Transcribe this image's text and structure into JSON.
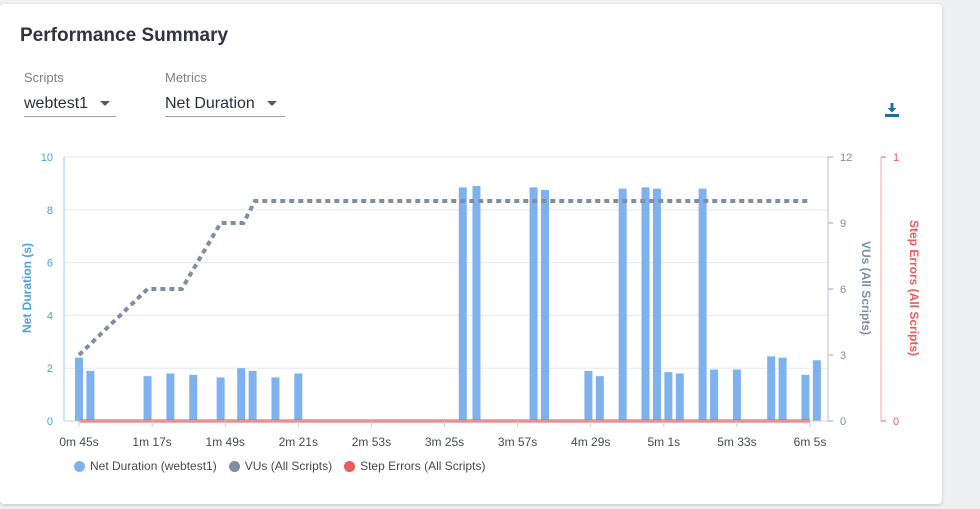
{
  "header": {
    "title": "Performance Summary"
  },
  "filters": {
    "scripts": {
      "label": "Scripts",
      "value": "webtest1"
    },
    "metrics": {
      "label": "Metrics",
      "value": "Net Duration"
    }
  },
  "icons": {
    "download": "download-icon"
  },
  "colors": {
    "duration": "#7eb2ee",
    "vus": "#7f8ea3",
    "errors": "#ee5a5a",
    "left_axis": "#4aa3df"
  },
  "chart_data": {
    "type": "bar",
    "ylabel": "Net Duration (s)",
    "y2label": "VUs (All Scripts)",
    "y3label": "Step Errors (All Scripts)",
    "ylim": [
      0,
      10
    ],
    "y2lim": [
      0,
      12
    ],
    "y3lim": [
      0,
      1
    ],
    "yticks": [
      "0",
      "2",
      "4",
      "6",
      "8",
      "10"
    ],
    "y2ticks": [
      "0",
      "3",
      "6",
      "9",
      "12"
    ],
    "y3ticks": [
      "0",
      "1"
    ],
    "xlim": [
      45,
      365
    ],
    "xticks": [
      {
        "t": 45,
        "label": "0m 45s"
      },
      {
        "t": 77,
        "label": "1m 17s"
      },
      {
        "t": 109,
        "label": "1m 49s"
      },
      {
        "t": 141,
        "label": "2m 21s"
      },
      {
        "t": 173,
        "label": "2m 53s"
      },
      {
        "t": 205,
        "label": "3m 25s"
      },
      {
        "t": 237,
        "label": "3m 57s"
      },
      {
        "t": 269,
        "label": "4m 29s"
      },
      {
        "t": 301,
        "label": "5m 1s"
      },
      {
        "t": 333,
        "label": "5m 33s"
      },
      {
        "t": 365,
        "label": "6m 5s"
      }
    ],
    "grid": true,
    "legend_position": "bottom-left",
    "series": [
      {
        "name": "Net Duration (webtest1)",
        "kind": "bar",
        "points": [
          {
            "t": 45,
            "v": 2.4
          },
          {
            "t": 50,
            "v": 1.9
          },
          {
            "t": 75,
            "v": 1.7
          },
          {
            "t": 85,
            "v": 1.8
          },
          {
            "t": 95,
            "v": 1.75
          },
          {
            "t": 107,
            "v": 1.65
          },
          {
            "t": 116,
            "v": 2.0
          },
          {
            "t": 121,
            "v": 1.9
          },
          {
            "t": 131,
            "v": 1.65
          },
          {
            "t": 141,
            "v": 1.8
          },
          {
            "t": 213,
            "v": 8.85
          },
          {
            "t": 219,
            "v": 8.9
          },
          {
            "t": 244,
            "v": 8.85
          },
          {
            "t": 249,
            "v": 8.75
          },
          {
            "t": 268,
            "v": 1.9
          },
          {
            "t": 273,
            "v": 1.7
          },
          {
            "t": 283,
            "v": 8.8
          },
          {
            "t": 293,
            "v": 8.85
          },
          {
            "t": 298,
            "v": 8.8
          },
          {
            "t": 303,
            "v": 1.85
          },
          {
            "t": 308,
            "v": 1.8
          },
          {
            "t": 318,
            "v": 8.8
          },
          {
            "t": 323,
            "v": 1.95
          },
          {
            "t": 333,
            "v": 1.95
          },
          {
            "t": 348,
            "v": 2.45
          },
          {
            "t": 353,
            "v": 2.4
          },
          {
            "t": 363,
            "v": 1.75
          },
          {
            "t": 368,
            "v": 2.3
          }
        ]
      },
      {
        "name": "VUs (All Scripts)",
        "kind": "dashed-line",
        "points": [
          {
            "t": 45,
            "v": 3
          },
          {
            "t": 75,
            "v": 6
          },
          {
            "t": 90,
            "v": 6
          },
          {
            "t": 107,
            "v": 9
          },
          {
            "t": 117,
            "v": 9
          },
          {
            "t": 122,
            "v": 10
          },
          {
            "t": 365,
            "v": 10
          }
        ]
      },
      {
        "name": "Step Errors (All Scripts)",
        "kind": "line",
        "points": [
          {
            "t": 45,
            "v": 0
          },
          {
            "t": 365,
            "v": 0
          }
        ]
      }
    ]
  }
}
